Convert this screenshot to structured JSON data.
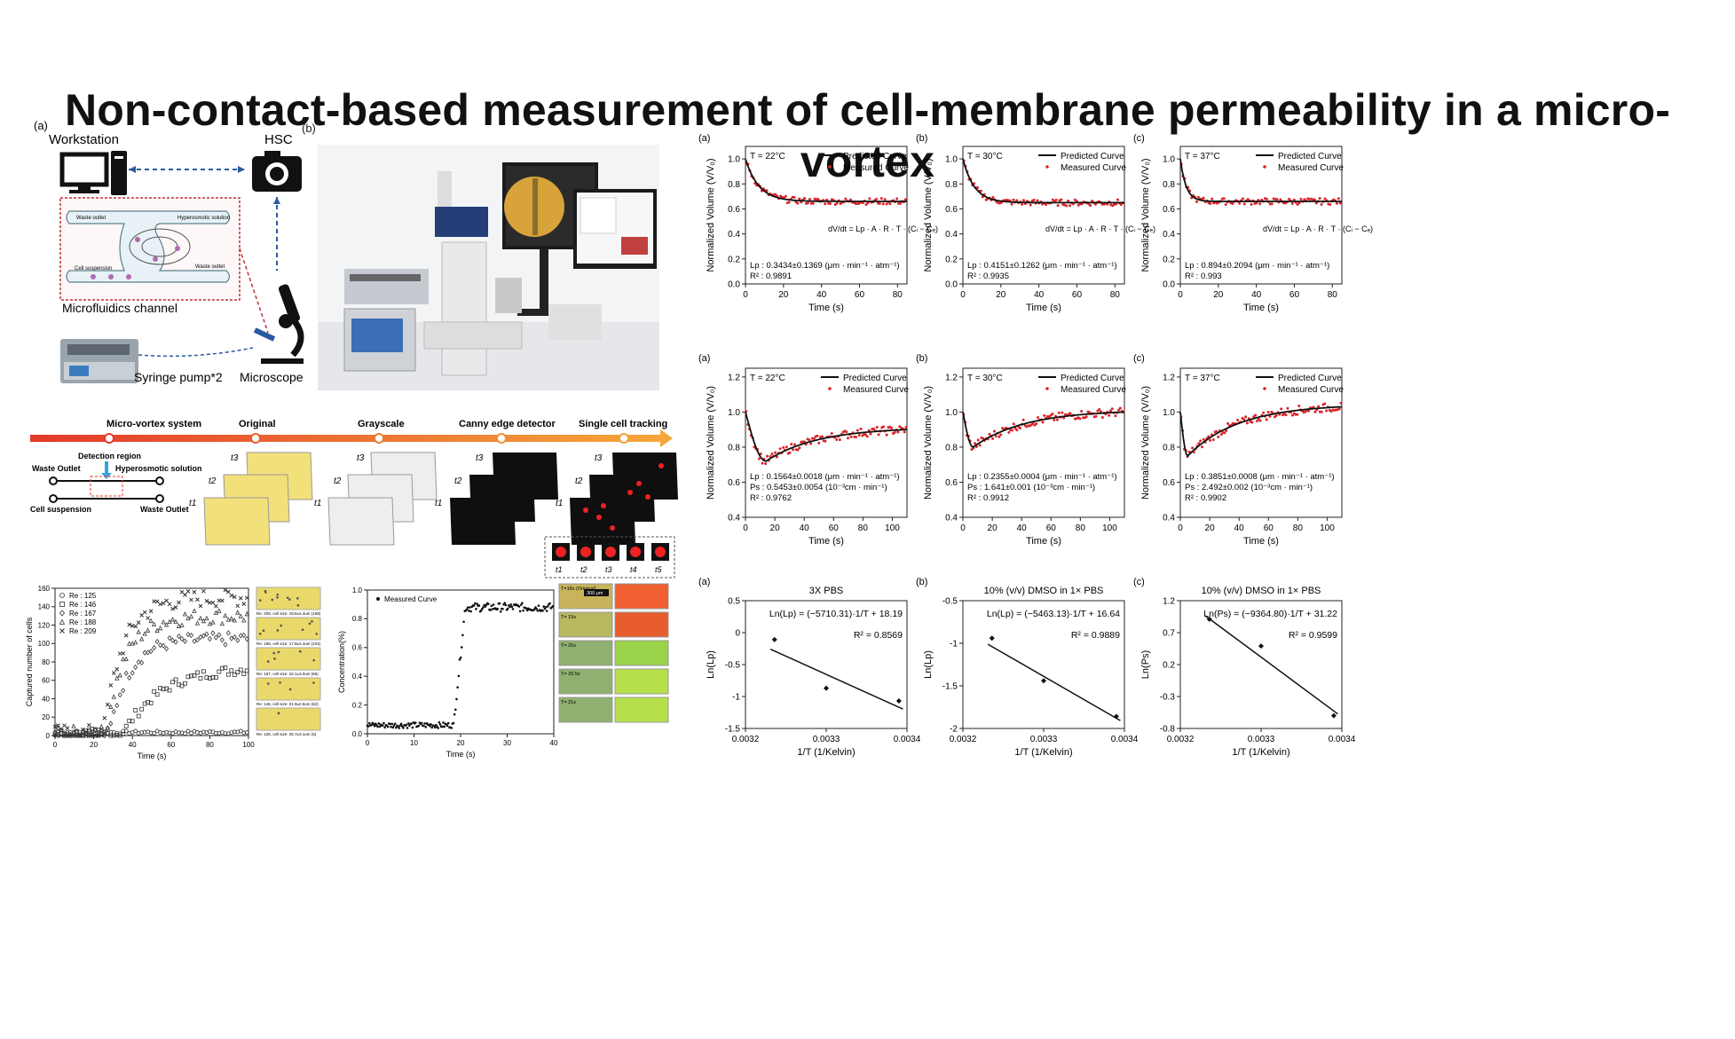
{
  "title": "Non-contact-based measurement of cell-membrane permeability in a micro-vortex",
  "left": {
    "panel_a_label": "(a)",
    "panel_b_label": "(b)",
    "workstation": "Workstation",
    "hsc": "HSC",
    "channel_waste_outlet_1": "Waste outlet",
    "channel_hyperosmotic": "Hyperosmotic solution",
    "channel_cell_suspension": "Cell suspension",
    "channel_waste_outlet_2": "Waste outlet",
    "microfluidics_channel": "Microfluidics channel",
    "syringe_pump": "Syringe pump*2",
    "microscope": "Microscope",
    "pipeline": {
      "steps": [
        "Micro-vortex system",
        "Original",
        "Grayscale",
        "Canny edge detector",
        "Single cell tracking"
      ],
      "detection_region": "Detection region",
      "waste_outlet_a": "Waste Outlet",
      "hyperosmotic": "Hyperosmotic solution",
      "cell_suspension": "Cell suspension",
      "waste_outlet_b": "Waste Outlet",
      "t1": "t1",
      "t2": "t2",
      "t3": "t3",
      "t4": "t4",
      "t5": "t5"
    }
  },
  "chart_data": [
    {
      "id": "captured",
      "type": "scatter",
      "ylabel": "Captured number of cells",
      "xlabel": "Time (s)",
      "xlim": [
        0,
        100
      ],
      "ylim": [
        0,
        160
      ],
      "xticks": [
        0,
        20,
        40,
        60,
        80,
        100
      ],
      "yticks": [
        0,
        20,
        40,
        60,
        80,
        100,
        120,
        140,
        160
      ],
      "legend": [
        "Re : 125",
        "Re : 146",
        "Re : 167",
        "Re : 188",
        "Re : 209"
      ],
      "plateaus": [
        3,
        75,
        105,
        130,
        150
      ],
      "onsets": [
        0,
        35,
        28,
        26,
        25
      ],
      "image_captions": [
        "Re: 209, cell size: 18.6±2.4um (158)",
        "Re: 188, cell size: 17.9±2.4um (102)",
        "Re: 167, cell size: 22.1±3.0um (66)",
        "Re: 146, cell size: 21.9±2.5um (62)",
        "Re: 125, cell size: 25.7±3.1um (5)"
      ]
    },
    {
      "id": "concentration",
      "type": "scatter",
      "legend": [
        "Measured Curve"
      ],
      "ylabel": "Concentration(%)",
      "xlabel": "Time (s)",
      "xlim": [
        0,
        40
      ],
      "ylim": [
        0,
        1.0
      ],
      "xticks": [
        0,
        10,
        20,
        30,
        40
      ],
      "yticks": [
        0.0,
        0.2,
        0.4,
        0.6,
        0.8,
        1.0
      ],
      "low": 0.06,
      "high": 0.88,
      "step_x": 19.5,
      "image_labels": [
        "T=18s (Original)",
        "T= 19s",
        "T= 20s",
        "T= 20.5s",
        "T= 21s"
      ],
      "scalebar": "300 μm"
    },
    {
      "id": "vol_a",
      "label": "(a)",
      "type": "line",
      "temp": "T = 22°C",
      "ylabel": "Normalized Volume (V/V₀)",
      "xlabel": "Time (s)",
      "xlim": [
        0,
        85
      ],
      "ylim": [
        0,
        1.1
      ],
      "xticks": [
        0,
        20,
        40,
        60,
        80
      ],
      "yticks": [
        0.0,
        0.2,
        0.4,
        0.6,
        0.8,
        1.0
      ],
      "legend": [
        "Predicted Curve",
        "Measured Curve"
      ],
      "equation": "dV/dt = Lp · A · R · T · (Cᵢ − Cₑ)",
      "stat1": "Lp : 0.3434±0.1369 (μm · min⁻¹ · atm⁻¹)",
      "r2": "R² : 0.9891",
      "plateau": 0.66,
      "tau": 7
    },
    {
      "id": "vol_b",
      "label": "(b)",
      "type": "line",
      "temp": "T = 30°C",
      "ylabel": "Normalized Volume (V/V₀)",
      "xlabel": "Time (s)",
      "xlim": [
        0,
        85
      ],
      "ylim": [
        0,
        1.1
      ],
      "xticks": [
        0,
        20,
        40,
        60,
        80
      ],
      "yticks": [
        0.0,
        0.2,
        0.4,
        0.6,
        0.8,
        1.0
      ],
      "legend": [
        "Predicted Curve",
        "Measured Curve"
      ],
      "equation": "dV/dt = Lp · A · R · T · (Cᵢ − Cₑ)",
      "stat1": "Lp : 0.4151±0.1262 (μm · min⁻¹ · atm⁻¹)",
      "r2": "R² : 0.9935",
      "plateau": 0.65,
      "tau": 6
    },
    {
      "id": "vol_c",
      "label": "(c)",
      "type": "line",
      "temp": "T = 37°C",
      "ylabel": "Normalized Volume (V/V₀)",
      "xlabel": "Time (s)",
      "xlim": [
        0,
        85
      ],
      "ylim": [
        0,
        1.1
      ],
      "xticks": [
        0,
        20,
        40,
        60,
        80
      ],
      "yticks": [
        0.0,
        0.2,
        0.4,
        0.6,
        0.8,
        1.0
      ],
      "legend": [
        "Predicted Curve",
        "Measured Curve"
      ],
      "equation": "dV/dt = Lp · A · R · T · (Cᵢ − Cₑ)",
      "stat1": "Lp : 0.894±0.2094 (μm · min⁻¹ · atm⁻¹)",
      "r2": "R² : 0.993",
      "plateau": 0.66,
      "tau": 3
    },
    {
      "id": "dmso_a",
      "label": "(a)",
      "type": "line",
      "temp": "T = 22°C",
      "ylabel": "Normalized Volume (V/V₀)",
      "xlabel": "Time (s)",
      "xlim": [
        0,
        110
      ],
      "ylim": [
        0.4,
        1.25
      ],
      "xticks": [
        0,
        20,
        40,
        60,
        80,
        100
      ],
      "yticks": [
        0.4,
        0.6,
        0.8,
        1.0,
        1.2
      ],
      "legend": [
        "Predicted Curve",
        "Measured Curve"
      ],
      "stat1": "Lp : 0.1564±0.0018 (μm · min⁻¹ · atm⁻¹)",
      "stat2": "Ps : 0.5453±0.0054 (10⁻³cm · min⁻¹)",
      "r2": "R² : 0.9762",
      "min_y": 0.72,
      "min_x": 14,
      "end_y": 0.9
    },
    {
      "id": "dmso_b",
      "label": "(b)",
      "type": "line",
      "temp": "T = 30°C",
      "ylabel": "Normalized Volume (V/V₀)",
      "xlabel": "Time (s)",
      "xlim": [
        0,
        110
      ],
      "ylim": [
        0.4,
        1.25
      ],
      "xticks": [
        0,
        20,
        40,
        60,
        80,
        100
      ],
      "yticks": [
        0.4,
        0.6,
        0.8,
        1.0,
        1.2
      ],
      "legend": [
        "Predicted Curve",
        "Measured Curve"
      ],
      "stat1": "Lp : 0.2355±0.0004 (μm · min⁻¹ · atm⁻¹)",
      "stat2": "Ps : 1.641±0.001 (10⁻³cm · min⁻¹)",
      "r2": "R² : 0.9912",
      "min_y": 0.8,
      "min_x": 7,
      "end_y": 1.0
    },
    {
      "id": "dmso_c",
      "label": "(c)",
      "type": "line",
      "temp": "T = 37°C",
      "ylabel": "Normalized Volume (V/V₀)",
      "xlabel": "Time (s)",
      "xlim": [
        0,
        110
      ],
      "ylim": [
        0.4,
        1.25
      ],
      "xticks": [
        0,
        20,
        40,
        60,
        80,
        100
      ],
      "yticks": [
        0.4,
        0.6,
        0.8,
        1.0,
        1.2
      ],
      "legend": [
        "Predicted Curve",
        "Measured Curve"
      ],
      "stat1": "Lp : 0.3851±0.0008 (μm · min⁻¹ · atm⁻¹)",
      "stat2": "Ps : 2.492±0.002 (10⁻³cm · min⁻¹)",
      "r2": "R² : 0.9902",
      "min_y": 0.75,
      "min_x": 5,
      "end_y": 1.03
    },
    {
      "id": "arr_a",
      "label": "(a)",
      "type": "scatter",
      "title": "3X PBS",
      "ylabel": "Ln(Lp)",
      "xlabel": "1/T (1/Kelvin)",
      "xlim": [
        0.0032,
        0.0034
      ],
      "ylim": [
        -1.5,
        0.5
      ],
      "xticks": [
        0.0032,
        0.0033,
        0.0034
      ],
      "yticks": [
        -1.5,
        -1,
        -0.5,
        0,
        0.5
      ],
      "x": [
        0.003236,
        0.0033,
        0.00339
      ],
      "y": [
        -0.11,
        -0.87,
        -1.07
      ],
      "fit_slope": -5710.31,
      "fit_intercept": 18.19,
      "eq_text": "Ln(Lp) = (−5710.31)·1/T + 18.19",
      "r2": "R² = 0.8569"
    },
    {
      "id": "arr_b",
      "label": "(b)",
      "type": "scatter",
      "title": "10% (v/v) DMSO in 1× PBS",
      "ylabel": "Ln(Lp)",
      "xlabel": "1/T (1/Kelvin)",
      "xlim": [
        0.0032,
        0.0034
      ],
      "ylim": [
        -2,
        -0.5
      ],
      "xticks": [
        0.0032,
        0.0033,
        0.0034
      ],
      "yticks": [
        -2,
        -1.5,
        -1,
        -0.5
      ],
      "x": [
        0.003236,
        0.0033,
        0.00339
      ],
      "y": [
        -0.94,
        -1.44,
        -1.86
      ],
      "fit_slope": -5463.13,
      "fit_intercept": 16.64,
      "eq_text": "Ln(Lp) = (−5463.13)·1/T + 16.64",
      "r2": "R² = 0.9889"
    },
    {
      "id": "arr_c",
      "label": "(c)",
      "type": "scatter",
      "title": "10% (v/v) DMSO in 1× PBS",
      "ylabel": "Ln(Ps)",
      "xlabel": "1/T (1/Kelvin)",
      "xlim": [
        0.0032,
        0.0034
      ],
      "ylim": [
        -0.8,
        1.2
      ],
      "xticks": [
        0.0032,
        0.0033,
        0.0034
      ],
      "yticks": [
        -0.8,
        -0.3,
        0.2,
        0.7,
        1.2
      ],
      "x": [
        0.003236,
        0.0033,
        0.00339
      ],
      "y": [
        0.91,
        0.49,
        -0.6
      ],
      "fit_slope": -9364.8,
      "fit_intercept": 31.22,
      "eq_text": "Ln(Ps) = (−9364.80)·1/T + 31.22",
      "r2": "R² = 0.9599"
    }
  ]
}
